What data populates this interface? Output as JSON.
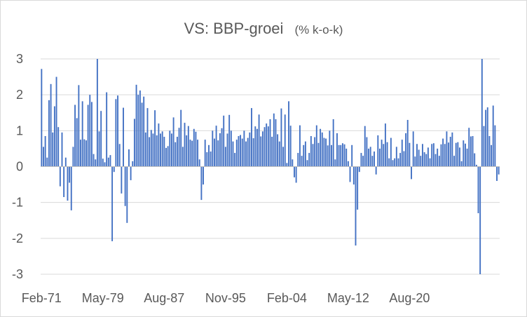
{
  "chart_data": {
    "type": "bar",
    "title": "VS: BBP-groei",
    "subtitle": "(% k-o-k)",
    "xlabel": "",
    "ylabel": "",
    "ylim": [
      -3,
      3
    ],
    "y_ticks": [
      "3",
      "2",
      "1",
      "0",
      "-1",
      "-2",
      "-3"
    ],
    "x_tick_labels": [
      "Feb-71",
      "May-79",
      "Aug-87",
      "Nov-95",
      "Feb-04",
      "May-12",
      "Aug-20"
    ],
    "x_tick_index": [
      0,
      33,
      66,
      99,
      132,
      165,
      198
    ],
    "grid": true,
    "legend": "none",
    "bar_color": "#4472c4",
    "frequency": "quarterly",
    "categories_start": "Feb-71",
    "values": [
      2.72,
      0.55,
      0.85,
      0.25,
      1.85,
      2.3,
      0.95,
      1.68,
      2.5,
      1.1,
      -0.55,
      0.95,
      -0.85,
      0.25,
      -0.95,
      -0.45,
      -1.22,
      0.55,
      1.72,
      1.35,
      2.27,
      0.75,
      1.82,
      0.76,
      0.73,
      1.72,
      2.0,
      1.8,
      0.35,
      0.2,
      3.0,
      0.98,
      1.55,
      0.22,
      0.12,
      2.07,
      0.25,
      0.32,
      -2.08,
      -0.15,
      1.88,
      1.98,
      0.63,
      -0.75,
      1.64,
      -1.1,
      -1.57,
      0.48,
      -0.38,
      0.15,
      1.33,
      2.28,
      2.0,
      2.12,
      1.78,
      1.95,
      0.95,
      1.63,
      0.82,
      1.02,
      0.92,
      1.57,
      0.87,
      1.2,
      0.92,
      0.98,
      0.83,
      0.52,
      0.57,
      1.0,
      0.92,
      1.37,
      0.68,
      0.83,
      1.08,
      1.58,
      0.55,
      1.22,
      0.87,
      1.13,
      0.75,
      0.72,
      1.05,
      0.97,
      0.75,
      0.2,
      -0.93,
      -0.5,
      0.75,
      0.4,
      0.6,
      0.42,
      1.0,
      0.78,
      1.14,
      0.73,
      0.93,
      1.07,
      1.42,
      0.55,
      0.92,
      1.44,
      1.0,
      0.7,
      0.38,
      0.75,
      0.85,
      0.88,
      0.78,
      1.0,
      0.7,
      0.8,
      0.95,
      1.63,
      0.79,
      1.12,
      1.05,
      1.45,
      0.84,
      0.98,
      1.1,
      1.2,
      1.12,
      1.32,
      0.83,
      1.48,
      1.32,
      0.9,
      0.7,
      1.62,
      0.55,
      1.45,
      0.1,
      1.82,
      1.14,
      0.2,
      -0.3,
      -0.45,
      0.38,
      1.15,
      0.3,
      0.6,
      0.7,
      0.18,
      0.38,
      0.85,
      0.63,
      0.82,
      1.15,
      0.66,
      1.05,
      0.95,
      0.8,
      0.78,
      0.59,
      1.0,
      0.6,
      1.32,
      0.2,
      0.93,
      0.6,
      0.6,
      0.65,
      0.62,
      0.5,
      0.15,
      -0.43,
      0.6,
      -0.5,
      -2.2,
      -1.2,
      -0.15,
      0.38,
      0.3,
      1.13,
      0.82,
      0.5,
      0.55,
      0.3,
      0.42,
      -0.22,
      0.87,
      0.5,
      0.75,
      0.63,
      1.2,
      0.68,
      0.23,
      0.8,
      0.18,
      0.23,
      0.55,
      0.23,
      0.38,
      0.75,
      0.43,
      0.93,
      1.3,
      0.66,
      -0.35,
      0.98,
      0.28,
      0.63,
      0.47,
      0.3,
      0.63,
      0.4,
      0.35,
      0.53,
      0.23,
      0.63,
      0.65,
      0.35,
      0.5,
      0.3,
      0.62,
      0.78,
      0.63,
      0.98,
      0.67,
      0.83,
      0.95,
      0.3,
      0.66,
      0.68,
      0.53,
      0.15,
      0.73,
      0.64,
      0.5,
      1.08,
      0.84,
      0.85,
      0.37,
      0.05,
      -1.3,
      -3.0,
      3.0,
      1.13,
      1.58,
      1.65,
      0.85,
      0.6,
      1.7,
      1.15,
      -0.4,
      -0.22
    ]
  }
}
